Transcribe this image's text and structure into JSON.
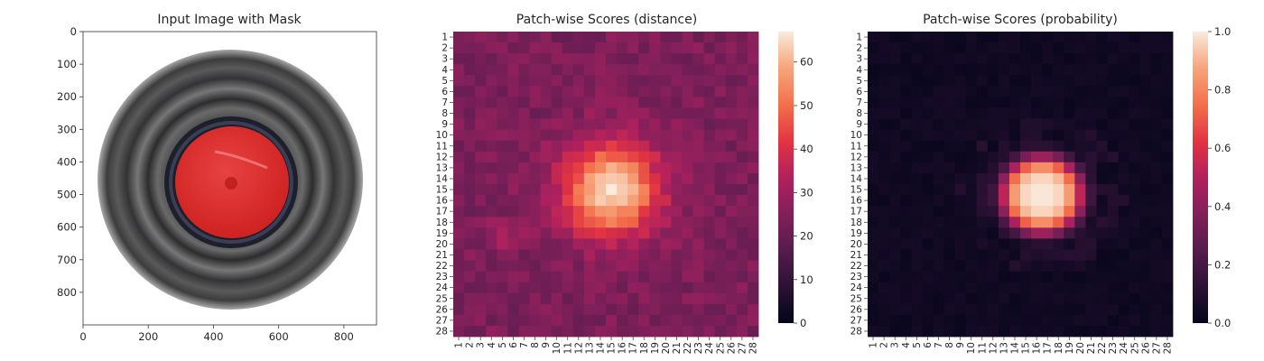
{
  "chart_data": [
    {
      "type": "image",
      "title": "Input Image with Mask",
      "image_content": "top-down view of a dark cylindrical container with a red segmentation mask over its circular center",
      "xlim": [
        0,
        900
      ],
      "ylim": [
        900,
        0
      ],
      "x_ticks": [
        "0",
        "200",
        "400",
        "600",
        "800"
      ],
      "y_ticks": [
        "0",
        "100",
        "200",
        "300",
        "400",
        "500",
        "600",
        "700",
        "800"
      ],
      "mask_color": "#d92a2a"
    },
    {
      "type": "heatmap",
      "title": "Patch-wise Scores (distance)",
      "rows": [
        "1",
        "2",
        "3",
        "4",
        "5",
        "6",
        "7",
        "8",
        "9",
        "10",
        "11",
        "12",
        "13",
        "14",
        "15",
        "16",
        "17",
        "18",
        "19",
        "20",
        "21",
        "22",
        "23",
        "24",
        "25",
        "26",
        "27",
        "28"
      ],
      "cols": [
        "1",
        "2",
        "3",
        "4",
        "5",
        "6",
        "7",
        "8",
        "9",
        "10",
        "11",
        "12",
        "13",
        "14",
        "15",
        "16",
        "17",
        "18",
        "19",
        "20",
        "21",
        "22",
        "23",
        "24",
        "25",
        "26",
        "27",
        "28"
      ],
      "background_range": [
        18,
        30
      ],
      "peak_cell": {
        "row": "15",
        "col": "15"
      },
      "peak_value": 67,
      "colorbar_range": [
        0,
        67
      ],
      "colorbar_ticks": [
        "0",
        "10",
        "20",
        "30",
        "40",
        "50",
        "60"
      ],
      "colormap": "rocket"
    },
    {
      "type": "heatmap",
      "title": "Patch-wise Scores (probability)",
      "rows": [
        "1",
        "2",
        "3",
        "4",
        "5",
        "6",
        "7",
        "8",
        "9",
        "10",
        "11",
        "12",
        "13",
        "14",
        "15",
        "16",
        "17",
        "18",
        "19",
        "20",
        "21",
        "22",
        "23",
        "24",
        "25",
        "26",
        "27",
        "28"
      ],
      "cols": [
        "1",
        "2",
        "3",
        "4",
        "5",
        "6",
        "7",
        "8",
        "9",
        "10",
        "11",
        "12",
        "13",
        "14",
        "15",
        "16",
        "17",
        "18",
        "19",
        "20",
        "21",
        "22",
        "23",
        "24",
        "25",
        "26",
        "27",
        "28"
      ],
      "high_region": {
        "rows": [
          "12",
          "18"
        ],
        "cols": [
          "12",
          "19"
        ]
      },
      "peak_value": 1.0,
      "colorbar_range": [
        0.0,
        1.0
      ],
      "colorbar_ticks": [
        "0.0",
        "0.2",
        "0.4",
        "0.6",
        "0.8",
        "1.0"
      ],
      "colormap": "rocket"
    }
  ]
}
